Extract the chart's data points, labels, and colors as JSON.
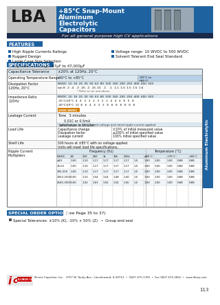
{
  "title_series": "LBA",
  "title_main": "+85°C Snap-Mount\nAluminum\nElectrolytic\nCapacitors",
  "subtitle": "For all general purpose high CV applications",
  "features_title": "FEATURES",
  "features_left": [
    "High Ripple Currents Ratings",
    "Rugged Design",
    "Large Case Size Selection",
    "Capacitance Range: 47µF to 47,000µF"
  ],
  "features_right": [
    "Voltage range: 10 WVDC to 500 WVDC",
    "Solvent Tolerant End Seal Standard"
  ],
  "specs_title": "SPECIFICATIONS",
  "load_life_title": "Load Life",
  "shelf_life_title": "Shelf Life",
  "ripple_title": "Ripple Current Multipliers",
  "special_title": "SPECIAL ORDER OPTIONS",
  "special_page": "(See Page 35 to 37)",
  "special_items": "Special Tolerances: ±10% (K), -10% + 50% (Z)   •  Group end seal",
  "company_address": "Illinois Capacitor, Inc.   3757 W. Touhy Ave., Lincolnwood, IL 60712  •  (847) 675-1760  •  Fax (847) 675-2662  •  www.illcap.com",
  "page_num": "113",
  "side_label": "Aluminum Electrolytic",
  "blue": "#1e62a0",
  "dark_blue": "#1a2a4a",
  "light_blue_bg": "#dce8f0",
  "mid_blue_bg": "#b8d0e8",
  "table_line": "#aaaaaa",
  "white": "#ffffff",
  "text_dark": "#111111",
  "orange": "#d4800a"
}
